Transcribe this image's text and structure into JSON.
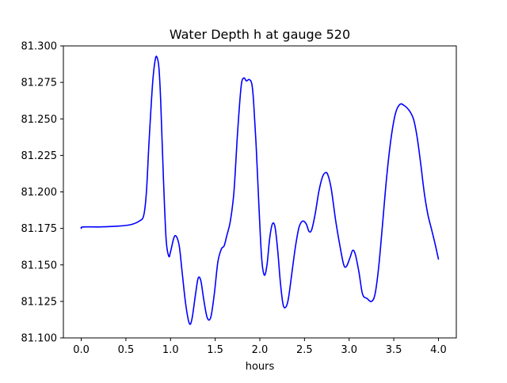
{
  "chart_data": {
    "type": "line",
    "title": "Water Depth h at gauge 520",
    "xlabel": "hours",
    "ylabel": "",
    "xlim": [
      -0.2,
      4.2
    ],
    "ylim": [
      81.1,
      81.3
    ],
    "xticks": [
      0.0,
      0.5,
      1.0,
      1.5,
      2.0,
      2.5,
      3.0,
      3.5,
      4.0
    ],
    "xtick_labels": [
      "0.0",
      "0.5",
      "1.0",
      "1.5",
      "2.0",
      "2.5",
      "3.0",
      "3.5",
      "4.0"
    ],
    "yticks": [
      81.1,
      81.125,
      81.15,
      81.175,
      81.2,
      81.225,
      81.25,
      81.275,
      81.3
    ],
    "ytick_labels": [
      "81.100",
      "81.125",
      "81.150",
      "81.175",
      "81.200",
      "81.225",
      "81.250",
      "81.275",
      "81.300"
    ],
    "grid": false,
    "series": [
      {
        "name": "",
        "color": "#0000ff",
        "x": [
          0.0,
          0.02,
          0.2,
          0.4,
          0.55,
          0.65,
          0.7,
          0.73,
          0.76,
          0.8,
          0.83,
          0.85,
          0.87,
          0.89,
          0.92,
          0.95,
          0.98,
          1.0,
          1.04,
          1.07,
          1.1,
          1.13,
          1.17,
          1.21,
          1.24,
          1.28,
          1.31,
          1.34,
          1.37,
          1.41,
          1.45,
          1.49,
          1.53,
          1.57,
          1.6,
          1.63,
          1.67,
          1.71,
          1.75,
          1.79,
          1.82,
          1.85,
          1.88,
          1.91,
          1.93,
          1.96,
          1.99,
          2.02,
          2.05,
          2.08,
          2.11,
          2.14,
          2.17,
          2.2,
          2.23,
          2.26,
          2.29,
          2.32,
          2.36,
          2.4,
          2.44,
          2.48,
          2.52,
          2.55,
          2.58,
          2.62,
          2.66,
          2.7,
          2.73,
          2.76,
          2.8,
          2.85,
          2.9,
          2.94,
          2.97,
          3.01,
          3.04,
          3.07,
          3.11,
          3.15,
          3.2,
          3.25,
          3.29,
          3.33,
          3.37,
          3.42,
          3.47,
          3.52,
          3.57,
          3.62,
          3.67,
          3.72,
          3.76,
          3.8,
          3.84,
          3.88,
          3.92,
          3.96,
          4.0
        ],
        "y": [
          81.175,
          81.176,
          81.176,
          81.1765,
          81.1775,
          81.18,
          81.184,
          81.2,
          81.235,
          81.275,
          81.291,
          81.292,
          81.285,
          81.262,
          81.21,
          81.168,
          81.156,
          81.159,
          81.169,
          81.169,
          81.162,
          81.145,
          81.123,
          81.11,
          81.113,
          81.13,
          81.141,
          81.139,
          81.127,
          81.114,
          81.114,
          81.13,
          81.152,
          81.161,
          81.163,
          81.17,
          81.18,
          81.2,
          81.24,
          81.272,
          81.278,
          81.276,
          81.277,
          81.274,
          81.262,
          81.23,
          81.19,
          81.155,
          81.143,
          81.15,
          81.168,
          81.178,
          81.176,
          81.16,
          81.138,
          81.123,
          81.121,
          81.127,
          81.145,
          81.163,
          81.176,
          81.18,
          81.178,
          81.173,
          81.174,
          81.185,
          81.2,
          81.21,
          81.213,
          81.212,
          81.202,
          81.18,
          81.162,
          81.15,
          81.149,
          81.155,
          81.16,
          81.157,
          81.145,
          81.13,
          81.127,
          81.125,
          81.13,
          81.148,
          81.175,
          81.21,
          81.237,
          81.254,
          81.26,
          81.259,
          81.256,
          81.25,
          81.238,
          81.22,
          81.2,
          81.185,
          81.175,
          81.165,
          81.154
        ]
      }
    ]
  }
}
